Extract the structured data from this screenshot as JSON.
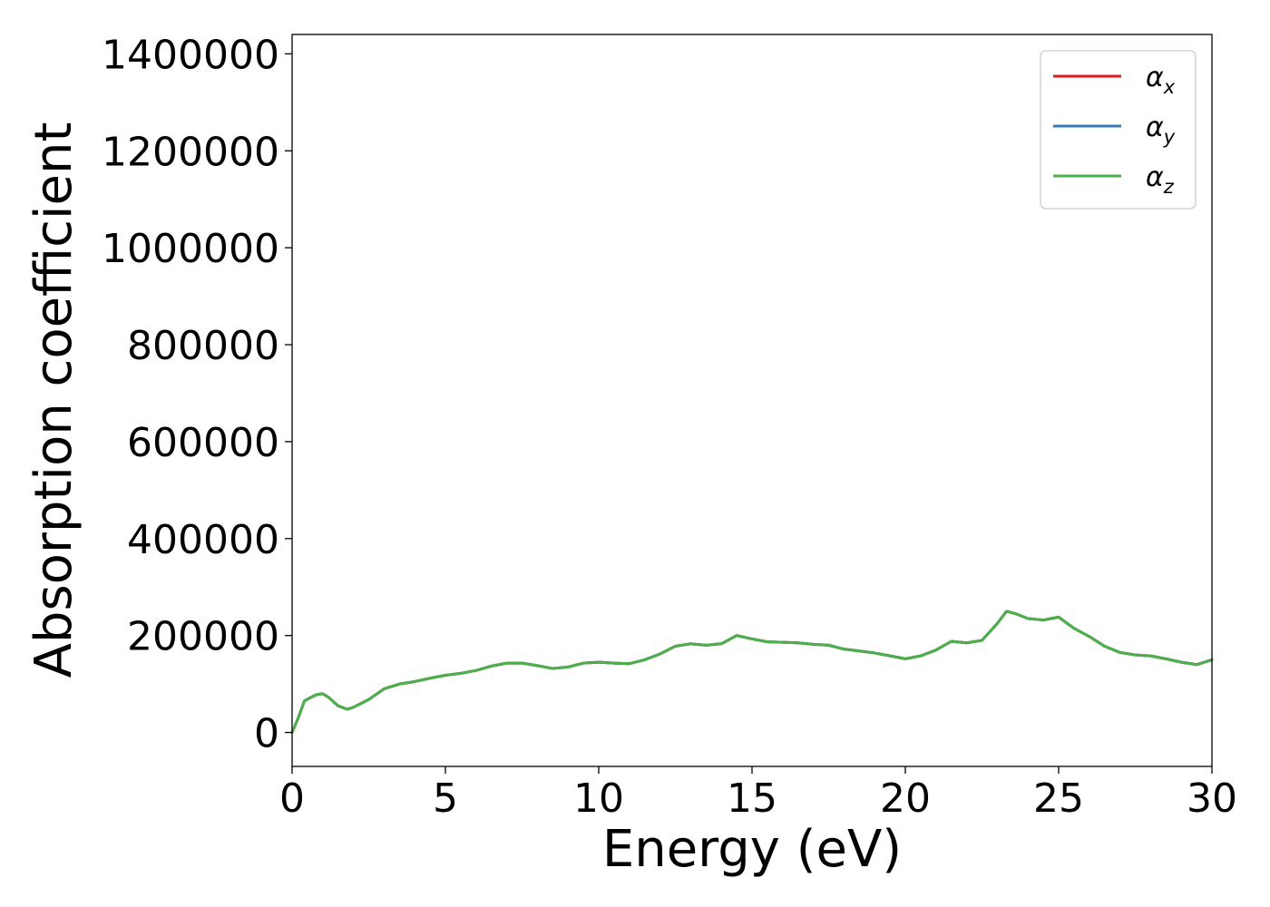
{
  "chart_data": {
    "type": "line",
    "title": "",
    "xlabel": "Energy (eV)",
    "ylabel": "Absorption coefficient",
    "xlim": [
      0,
      30
    ],
    "ylim": [
      -70000,
      1440000
    ],
    "xticks": [
      0,
      5,
      10,
      15,
      20,
      25,
      30
    ],
    "xtick_labels": [
      "0",
      "5",
      "10",
      "15",
      "20",
      "25",
      "30"
    ],
    "yticks": [
      0,
      200000,
      400000,
      600000,
      800000,
      1000000,
      1200000,
      1400000
    ],
    "ytick_labels": [
      "0",
      "200000",
      "400000",
      "600000",
      "800000",
      "1000000",
      "1200000",
      "1400000"
    ],
    "grid": false,
    "legend_position": "top-right",
    "x": [
      0,
      0.2,
      0.4,
      0.6,
      0.8,
      1.0,
      1.2,
      1.5,
      1.8,
      2.0,
      2.5,
      3.0,
      3.5,
      4.0,
      4.5,
      5.0,
      5.5,
      6.0,
      6.5,
      7.0,
      7.5,
      8.0,
      8.5,
      9.0,
      9.5,
      10.0,
      10.5,
      11.0,
      11.5,
      12.0,
      12.5,
      13.0,
      13.5,
      14.0,
      14.5,
      15.0,
      15.5,
      16.0,
      16.5,
      17.0,
      17.5,
      18.0,
      18.5,
      19.0,
      19.5,
      20.0,
      20.5,
      21.0,
      21.5,
      22.0,
      22.5,
      23.0,
      23.3,
      23.6,
      24.0,
      24.5,
      25.0,
      25.5,
      26.0,
      26.5,
      27.0,
      27.5,
      28.0,
      28.5,
      29.0,
      29.5,
      30.0
    ],
    "series": [
      {
        "name": "αx",
        "label_base": "α",
        "label_sub": "x",
        "color": "#e41a1c",
        "values": [
          0,
          30000,
          65000,
          72000,
          78000,
          80000,
          72000,
          55000,
          48000,
          52000,
          68000,
          90000,
          100000,
          105000,
          112000,
          118000,
          122000,
          128000,
          137000,
          143000,
          143000,
          138000,
          132000,
          135000,
          143000,
          145000,
          143000,
          142000,
          150000,
          162000,
          178000,
          183000,
          180000,
          183000,
          200000,
          193000,
          187000,
          186000,
          185000,
          182000,
          180000,
          172000,
          168000,
          164000,
          158000,
          152000,
          158000,
          170000,
          188000,
          185000,
          190000,
          225000,
          250000,
          245000,
          235000,
          232000,
          238000,
          215000,
          198000,
          178000,
          165000,
          160000,
          158000,
          152000,
          145000,
          140000,
          150000
        ]
      },
      {
        "name": "αy",
        "label_base": "α",
        "label_sub": "y",
        "color": "#377eb8",
        "values": [
          0,
          30000,
          65000,
          72000,
          78000,
          80000,
          72000,
          55000,
          48000,
          52000,
          68000,
          90000,
          100000,
          105000,
          112000,
          118000,
          122000,
          128000,
          137000,
          143000,
          143000,
          138000,
          132000,
          135000,
          143000,
          145000,
          143000,
          142000,
          150000,
          162000,
          178000,
          183000,
          180000,
          183000,
          200000,
          193000,
          187000,
          186000,
          185000,
          182000,
          180000,
          172000,
          168000,
          164000,
          158000,
          152000,
          158000,
          170000,
          188000,
          185000,
          190000,
          225000,
          250000,
          245000,
          235000,
          232000,
          238000,
          215000,
          198000,
          178000,
          165000,
          160000,
          158000,
          152000,
          145000,
          140000,
          150000
        ]
      },
      {
        "name": "αz",
        "label_base": "α",
        "label_sub": "z",
        "color": "#4daf4a",
        "values": [
          0,
          30000,
          65000,
          72000,
          78000,
          80000,
          72000,
          55000,
          48000,
          52000,
          68000,
          90000,
          100000,
          105000,
          112000,
          118000,
          122000,
          128000,
          137000,
          143000,
          143000,
          138000,
          132000,
          135000,
          143000,
          145000,
          143000,
          142000,
          150000,
          162000,
          178000,
          183000,
          180000,
          183000,
          200000,
          193000,
          187000,
          186000,
          185000,
          182000,
          180000,
          172000,
          168000,
          164000,
          158000,
          152000,
          158000,
          170000,
          188000,
          185000,
          190000,
          225000,
          250000,
          245000,
          235000,
          232000,
          238000,
          215000,
          198000,
          178000,
          165000,
          160000,
          158000,
          152000,
          145000,
          140000,
          150000
        ]
      }
    ]
  }
}
